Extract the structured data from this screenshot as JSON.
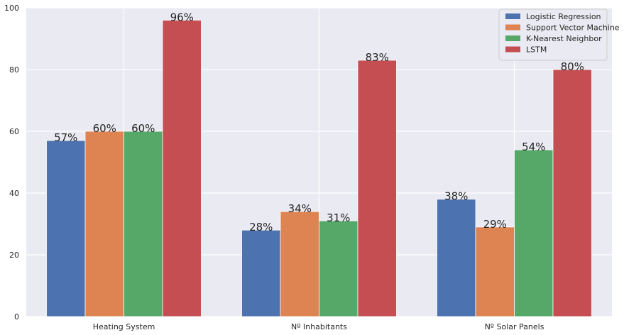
{
  "chart_data": {
    "type": "bar",
    "categories": [
      "Heating System",
      "Nº Inhabitants",
      "Nº Solar Panels"
    ],
    "series": [
      {
        "name": "Logistic Regression",
        "values": [
          57,
          28,
          38
        ],
        "labels": [
          "57%",
          "28%",
          "38%"
        ],
        "color": "#4c72b0"
      },
      {
        "name": "Support Vector Machine",
        "values": [
          60,
          34,
          29
        ],
        "labels": [
          "60%",
          "34%",
          "29%"
        ],
        "color": "#dd8452"
      },
      {
        "name": "K-Nearest Neighbor",
        "values": [
          60,
          31,
          54
        ],
        "labels": [
          "60%",
          "31%",
          "54%"
        ],
        "color": "#55a868"
      },
      {
        "name": "LSTM",
        "values": [
          96,
          83,
          80
        ],
        "labels": [
          "96%",
          "83%",
          "80%"
        ],
        "color": "#c44e52"
      }
    ],
    "ylim": [
      0,
      100
    ],
    "yticks": [
      0,
      20,
      40,
      60,
      80,
      100
    ],
    "grid": true,
    "legend": "top-right",
    "background": "#eaeaf2"
  }
}
